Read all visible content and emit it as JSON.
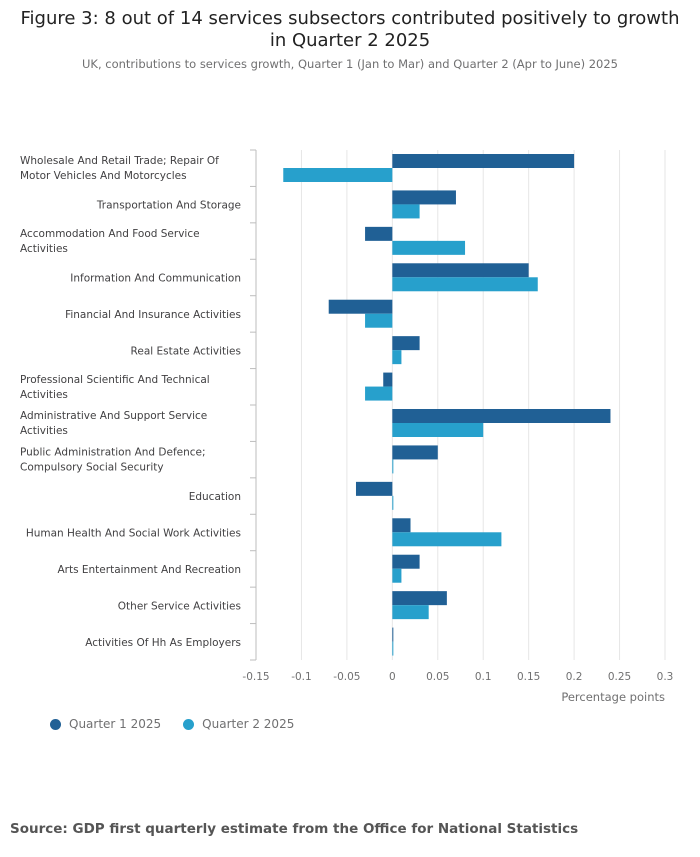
{
  "header": {
    "title": "Figure 3: 8 out of 14 services subsectors contributed positively to growth in Quarter 2 2025",
    "subtitle": "UK, contributions to services growth, Quarter 1 (Jan to Mar) and Quarter 2 (Apr to June) 2025"
  },
  "colors": {
    "q1": "#206095",
    "q2": "#27a0cc",
    "grid": "#e6e6e6",
    "axis": "#bdbdbd",
    "text": "#414042"
  },
  "legend": {
    "q1_label": "Quarter 1 2025",
    "q2_label": "Quarter 2 2025"
  },
  "source": "Source: GDP first quarterly estimate from the Office for National Statistics",
  "chart_data": {
    "type": "bar",
    "orientation": "horizontal",
    "title": "Figure 3: 8 out of 14 services subsectors contributed positively to growth in Quarter 2 2025",
    "subtitle": "UK, contributions to services growth, Quarter 1 (Jan to Mar) and Quarter 2 (Apr to June) 2025",
    "xlabel": "Percentage points",
    "ylabel": "",
    "xlim": [
      -0.15,
      0.3
    ],
    "ticks": [
      -0.15,
      -0.1,
      -0.05,
      0,
      0.05,
      0.1,
      0.15,
      0.2,
      0.25,
      0.3
    ],
    "tick_labels": [
      "-0.15",
      "-0.1",
      "-0.05",
      "0",
      "0.05",
      "0.1",
      "0.15",
      "0.2",
      "0.25",
      "0.3"
    ],
    "grid": true,
    "legend_position": "bottom-left",
    "categories": [
      [
        "Wholesale And Retail Trade; Repair Of",
        "Motor Vehicles And Motorcycles"
      ],
      [
        "Transportation And Storage"
      ],
      [
        "Accommodation And Food Service",
        "Activities"
      ],
      [
        "Information And Communication"
      ],
      [
        "Financial And Insurance Activities"
      ],
      [
        "Real Estate Activities"
      ],
      [
        "Professional Scientific And Technical",
        "Activities"
      ],
      [
        "Administrative And Support Service",
        "Activities"
      ],
      [
        "Public Administration And Defence;",
        "Compulsory Social Security"
      ],
      [
        "Education"
      ],
      [
        "Human Health And Social Work Activities"
      ],
      [
        "Arts Entertainment And Recreation"
      ],
      [
        "Other Service Activities"
      ],
      [
        "Activities Of Hh As Employers"
      ]
    ],
    "series": [
      {
        "name": "Quarter 1 2025",
        "values": [
          0.2,
          0.07,
          -0.03,
          0.15,
          -0.07,
          0.03,
          -0.01,
          0.24,
          0.05,
          -0.04,
          0.02,
          0.03,
          0.06,
          0.0
        ]
      },
      {
        "name": "Quarter 2 2025",
        "values": [
          -0.12,
          0.03,
          0.08,
          0.16,
          -0.03,
          0.01,
          -0.03,
          0.1,
          0.0,
          0.0,
          0.12,
          0.01,
          0.04,
          0.0
        ]
      }
    ]
  }
}
